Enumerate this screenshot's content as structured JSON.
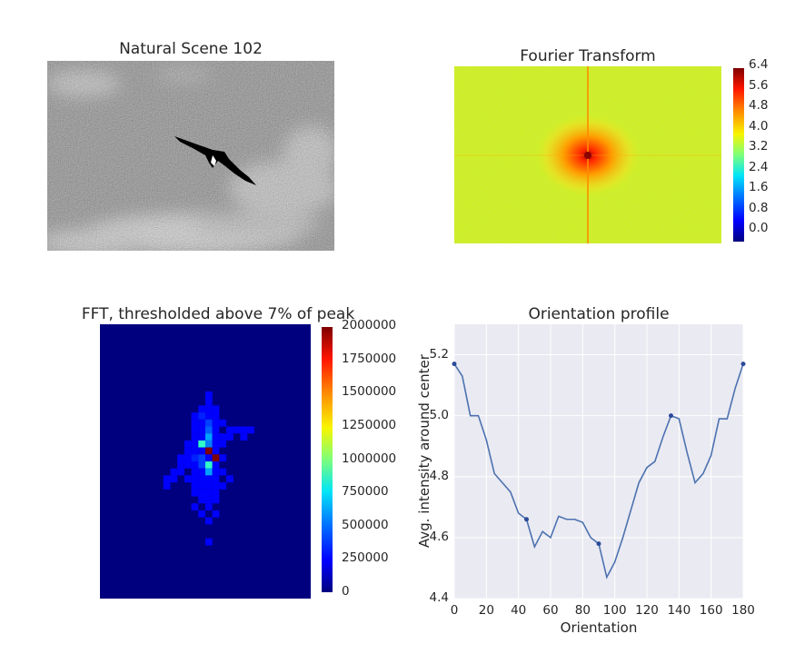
{
  "panels": {
    "scene": {
      "title": "Natural Scene 102"
    },
    "fourier": {
      "title": "Fourier Transform",
      "colorbar_ticks": [
        "6.4",
        "5.6",
        "4.8",
        "4.0",
        "3.2",
        "2.4",
        "1.6",
        "0.8",
        "0.0"
      ]
    },
    "thresholded": {
      "title": "FFT, thresholded above 7% of peak",
      "colorbar_ticks": [
        "2000000",
        "1750000",
        "1500000",
        "1250000",
        "1000000",
        "750000",
        "500000",
        "250000",
        "0"
      ]
    }
  },
  "chart_data": {
    "type": "line",
    "title": "Orientation profile",
    "xlabel": "Orientation",
    "ylabel": "Avg. intensity around center",
    "xlim": [
      0,
      180
    ],
    "ylim": [
      4.4,
      5.3
    ],
    "xticks": [
      "0",
      "20",
      "40",
      "60",
      "80",
      "100",
      "120",
      "140",
      "160",
      "180"
    ],
    "yticks": [
      "4.4",
      "4.6",
      "4.8",
      "5.0",
      "5.2"
    ],
    "grid": true,
    "x": [
      0,
      5,
      10,
      15,
      20,
      25,
      30,
      35,
      40,
      45,
      50,
      55,
      60,
      65,
      70,
      75,
      80,
      85,
      90,
      95,
      100,
      105,
      110,
      115,
      120,
      125,
      130,
      135,
      140,
      145,
      150,
      155,
      160,
      165,
      170,
      175,
      180
    ],
    "y": [
      5.17,
      5.13,
      5.0,
      5.0,
      4.92,
      4.81,
      4.78,
      4.75,
      4.68,
      4.66,
      4.57,
      4.62,
      4.6,
      4.67,
      4.66,
      4.66,
      4.65,
      4.6,
      4.58,
      4.47,
      4.52,
      4.6,
      4.69,
      4.78,
      4.83,
      4.85,
      4.93,
      5.0,
      4.99,
      4.88,
      4.78,
      4.81,
      4.87,
      4.99,
      4.99,
      5.09,
      5.17
    ],
    "markers": {
      "x": [
        0,
        45,
        90,
        135,
        180
      ],
      "y": [
        5.17,
        4.66,
        4.58,
        5.0,
        5.17
      ]
    },
    "line_color": "#4c72b0"
  }
}
